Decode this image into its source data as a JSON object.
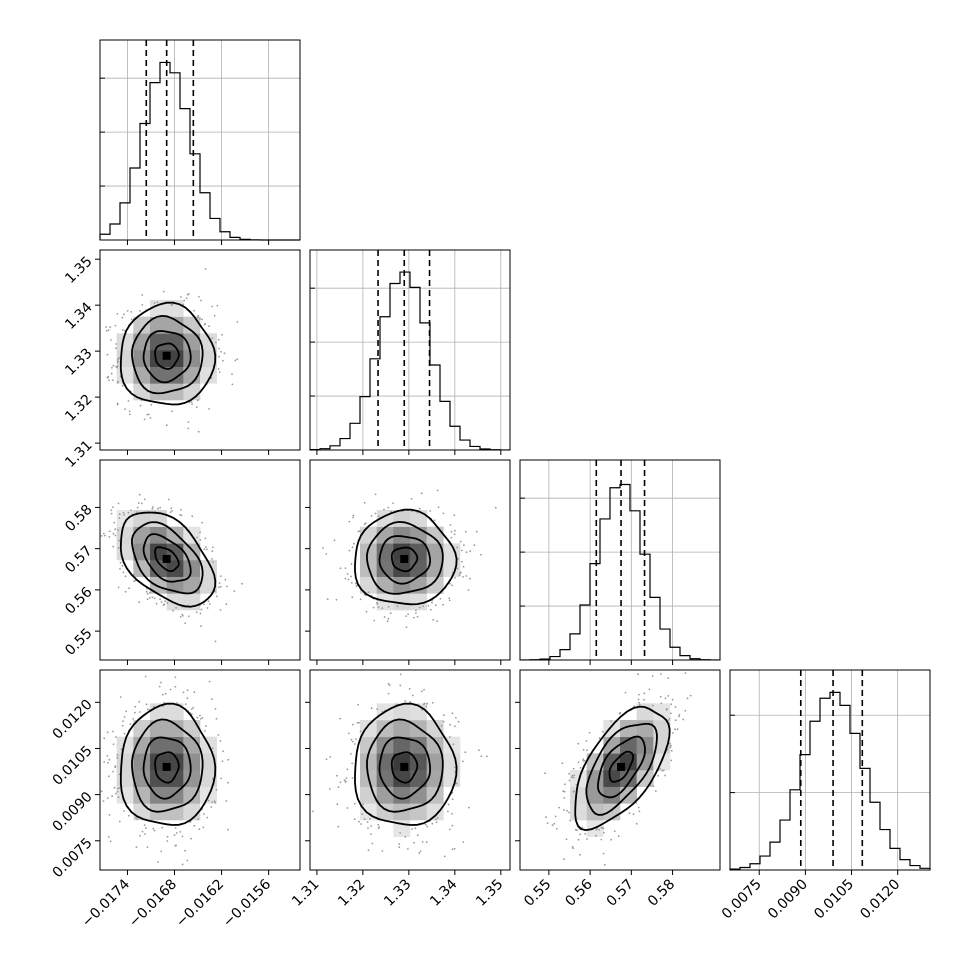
{
  "chart_data": {
    "type": "corner",
    "parameters": [
      {
        "range": [
          -0.01775,
          -0.0152
        ],
        "ticks": [
          -0.0174,
          -0.0168,
          -0.0162,
          -0.0156
        ],
        "tick_labels": [
          "−0.0174",
          "−0.0168",
          "−0.0162",
          "−0.0156"
        ],
        "quantiles": [
          -0.01716,
          -0.0169,
          -0.01656
        ],
        "mean": -0.0169,
        "sd": 0.0003,
        "hist_ticks": 3
      },
      {
        "range": [
          1.3085,
          1.352
        ],
        "ticks": [
          1.31,
          1.32,
          1.33,
          1.34,
          1.35
        ],
        "tick_labels": [
          "1.31",
          "1.32",
          "1.33",
          "1.34",
          "1.35"
        ],
        "quantiles": [
          1.3233,
          1.329,
          1.3345
        ],
        "mean": 1.329,
        "sd": 0.0055,
        "hist_ticks": 3
      },
      {
        "range": [
          0.543,
          0.5915
        ],
        "ticks": [
          0.55,
          0.56,
          0.57,
          0.58
        ],
        "tick_labels": [
          "0.55",
          "0.56",
          "0.57",
          "0.58"
        ],
        "quantiles": [
          0.5615,
          0.5675,
          0.5732
        ],
        "mean": 0.5675,
        "sd": 0.0057,
        "hist_ticks": 3
      },
      {
        "range": [
          0.00655,
          0.01305
        ],
        "ticks": [
          0.0075,
          0.009,
          0.0105,
          0.012
        ],
        "tick_labels": [
          "0.0075",
          "0.0090",
          "0.0105",
          "0.0120"
        ],
        "quantiles": [
          0.00885,
          0.0099,
          0.01085
        ],
        "mean": 0.0099,
        "sd": 0.00098,
        "hist_ticks": 2
      }
    ],
    "correlation": [
      [
        1.0,
        0.0,
        -0.45,
        0.0
      ],
      [
        0.0,
        1.0,
        0.0,
        0.0
      ],
      [
        -0.45,
        0.0,
        1.0,
        0.6
      ],
      [
        0.0,
        0.0,
        0.6,
        1.0
      ]
    ],
    "hist_bins": 20,
    "contour_levels_sigma": [
      0.5,
      1.0,
      1.5,
      2.0
    ],
    "grid": true
  }
}
